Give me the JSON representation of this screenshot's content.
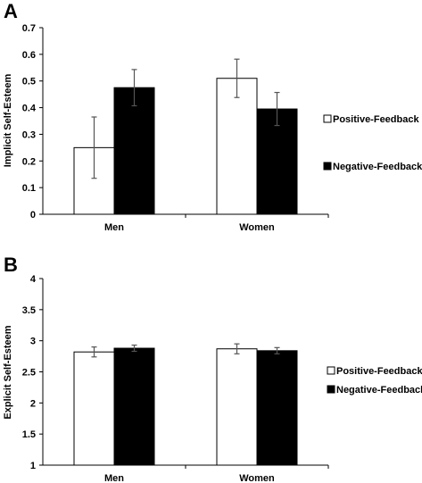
{
  "chart_data": [
    {
      "panel": "A",
      "type": "bar",
      "ylabel": "Implicit Self-Esteem",
      "ylim": [
        0,
        0.7
      ],
      "yticks": [
        "0",
        "0.1",
        "0.2",
        "0.3",
        "0.4",
        "0.5",
        "0.6",
        "0.7"
      ],
      "categories": [
        "Men",
        "Women"
      ],
      "series": [
        {
          "name": "Positive-Feedback",
          "color": "#ffffff",
          "values": [
            0.25,
            0.51
          ],
          "err": [
            0.115,
            0.072
          ]
        },
        {
          "name": "Negative-Feedback",
          "color": "#000000",
          "values": [
            0.475,
            0.395
          ],
          "err": [
            0.068,
            0.062
          ]
        }
      ],
      "legend": "right"
    },
    {
      "panel": "B",
      "type": "bar",
      "ylabel": "Explicit Self-Esteem",
      "ylim": [
        1,
        4
      ],
      "yticks": [
        "1",
        "1.5",
        "2",
        "2.5",
        "3",
        "3.5",
        "4"
      ],
      "categories": [
        "Men",
        "Women"
      ],
      "series": [
        {
          "name": "Positive-Feedback",
          "color": "#ffffff",
          "values": [
            2.82,
            2.87
          ],
          "err": [
            0.08,
            0.08
          ]
        },
        {
          "name": "Negative-Feedback",
          "color": "#000000",
          "values": [
            2.88,
            2.84
          ],
          "err": [
            0.05,
            0.05
          ]
        }
      ],
      "legend": "right"
    }
  ]
}
